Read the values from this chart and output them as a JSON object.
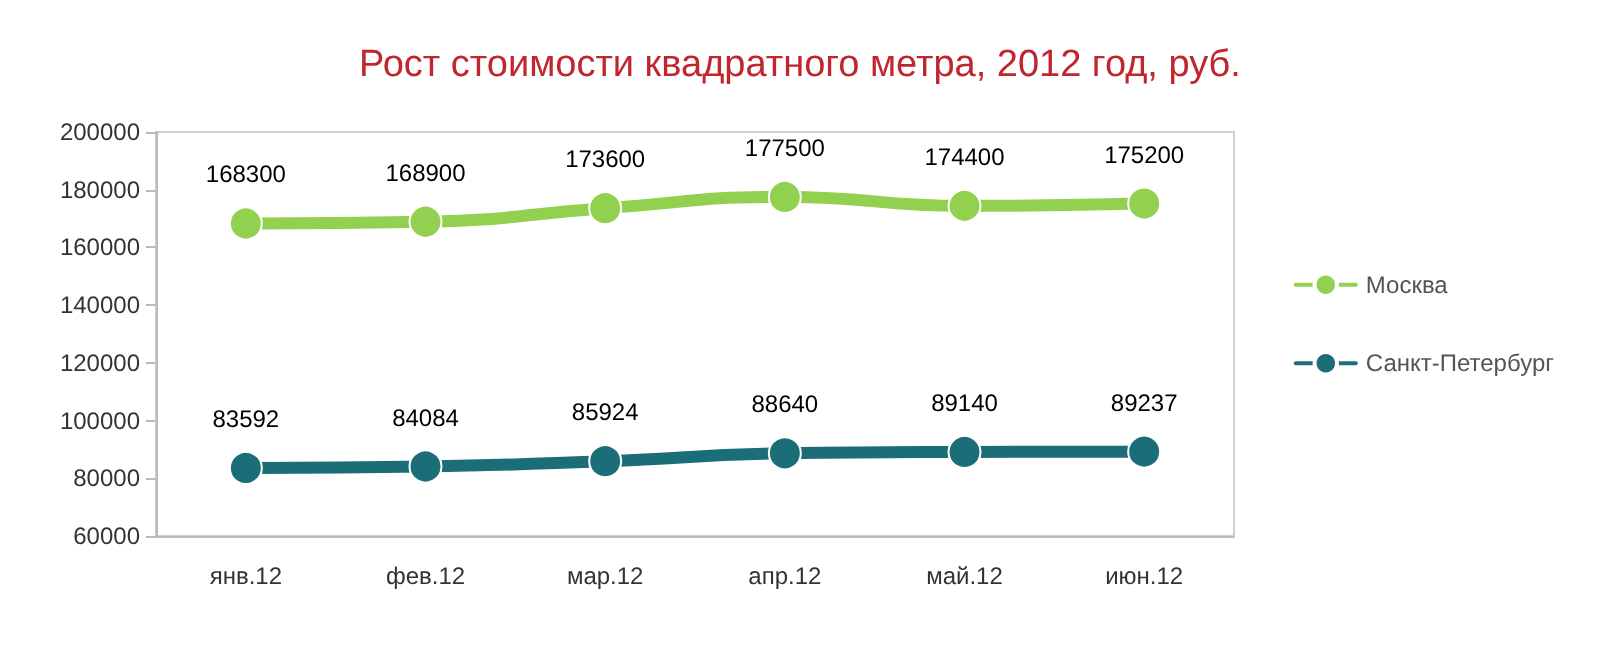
{
  "chart_data": {
    "type": "line",
    "title": "Рост стоимости квадратного метра, 2012 год, руб.",
    "categories": [
      "янв.12",
      "фев.12",
      "мар.12",
      "апр.12",
      "май.12",
      "июн.12"
    ],
    "series": [
      {
        "name": "Москва",
        "color": "#92d050",
        "values": [
          168300,
          168900,
          173600,
          177500,
          174400,
          175200
        ]
      },
      {
        "name": "Санкт-Петербург",
        "color": "#1b6e78",
        "values": [
          83592,
          84084,
          85924,
          88640,
          89140,
          89237
        ]
      }
    ],
    "ylim": [
      60000,
      200000
    ],
    "yticks": [
      60000,
      80000,
      100000,
      120000,
      140000,
      160000,
      180000,
      200000
    ],
    "grid": false,
    "legend": "right",
    "marker": "circle",
    "line_style": "solid",
    "data_labels": true
  }
}
